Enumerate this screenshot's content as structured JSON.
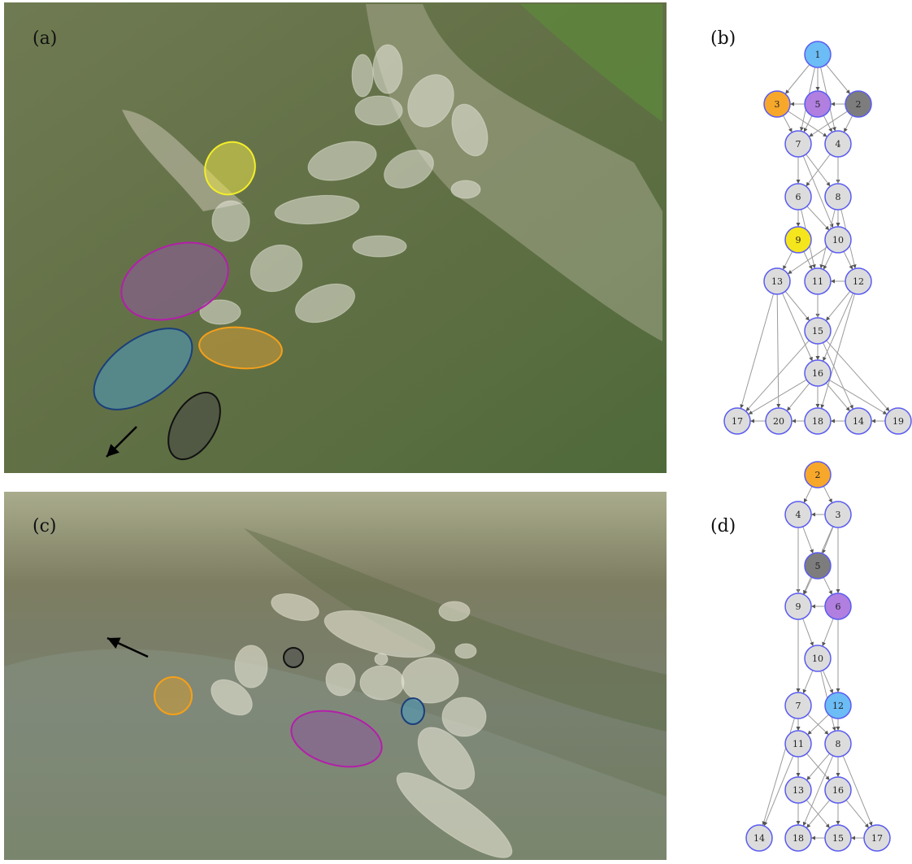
{
  "panel_labels": [
    "(a)",
    "(b)",
    "(c)",
    "(d)"
  ],
  "graph_b": {
    "nodes": [
      "1",
      "3",
      "5",
      "2",
      "7",
      "4",
      "6",
      "8",
      "9",
      "10",
      "13",
      "11",
      "12",
      "15",
      "16",
      "17",
      "20",
      "18",
      "14",
      "19"
    ]
  },
  "graph_d": {
    "nodes": [
      "2",
      "4",
      "3",
      "5",
      "9",
      "6",
      "10",
      "7",
      "12",
      "11",
      "8",
      "13",
      "16",
      "14",
      "18",
      "15",
      "17"
    ]
  }
}
